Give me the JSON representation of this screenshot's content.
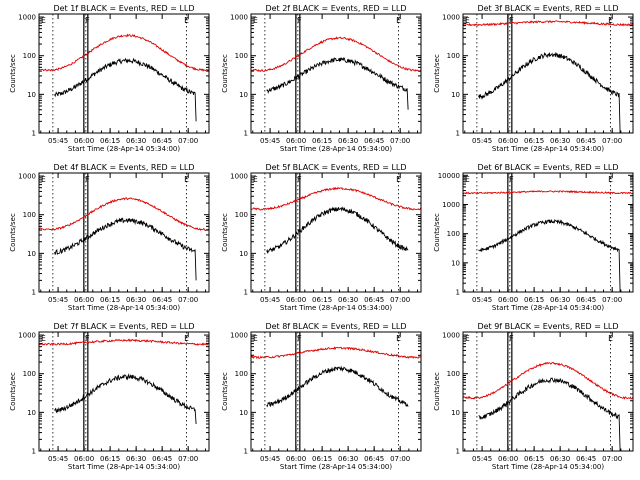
{
  "figure": {
    "xlabel": "Start Time (28-Apr-14 05:34:00)",
    "ylabel": "Counts/sec",
    "colors": {
      "events": "#000000",
      "lld": "#e00000"
    },
    "x_tick_labels": [
      "05:45",
      "06:00",
      "06:15",
      "06:30",
      "06:45",
      "07:00"
    ],
    "y_tick_labels": [
      "1",
      "10",
      "100",
      "1000"
    ],
    "flag_labels": {
      "e": "E",
      "f": "F"
    }
  },
  "chart_data": [
    {
      "type": "line",
      "title": "Det 1f BLACK = Events, RED = LLD",
      "yscale": "log",
      "ylim": [
        1,
        1200
      ],
      "x_range": [
        "05:34",
        "07:12"
      ],
      "series": [
        {
          "color": "#000000",
          "base": 40,
          "amp": 0.45,
          "start": "05:43",
          "end": "07:04",
          "tail": 2
        },
        {
          "color": "#e00000",
          "base": 180,
          "amp": 0.45,
          "start": "05:34",
          "end": "07:12"
        }
      ]
    },
    {
      "type": "line",
      "title": "Det 2f BLACK = Events, RED = LLD",
      "yscale": "log",
      "ylim": [
        1,
        1200
      ],
      "x_range": [
        "05:34",
        "07:12"
      ],
      "series": [
        {
          "color": "#000000",
          "base": 45,
          "amp": 0.4,
          "start": "05:43",
          "end": "07:04",
          "tail": 4
        },
        {
          "color": "#e00000",
          "base": 160,
          "amp": 0.42,
          "start": "05:34",
          "end": "07:12"
        }
      ]
    },
    {
      "type": "line",
      "title": "Det 3f BLACK = Events, RED = LLD",
      "yscale": "log",
      "ylim": [
        1,
        1200
      ],
      "x_range": [
        "05:34",
        "07:12"
      ],
      "series": [
        {
          "color": "#000000",
          "base": 50,
          "amp": 0.55,
          "start": "05:43",
          "end": "07:04",
          "tail": 1
        },
        {
          "color": "#e00000",
          "base": 720,
          "amp": 0.04,
          "start": "05:34",
          "end": "07:12"
        }
      ]
    },
    {
      "type": "line",
      "title": "Det 4f BLACK = Events, RED = LLD",
      "yscale": "log",
      "ylim": [
        1,
        1200
      ],
      "x_range": [
        "05:34",
        "07:12"
      ],
      "series": [
        {
          "color": "#000000",
          "base": 40,
          "amp": 0.42,
          "start": "05:43",
          "end": "07:04",
          "tail": 2
        },
        {
          "color": "#e00000",
          "base": 150,
          "amp": 0.4,
          "start": "05:34",
          "end": "07:12"
        }
      ]
    },
    {
      "type": "line",
      "title": "Det 5f BLACK = Events, RED = LLD",
      "yscale": "log",
      "ylim": [
        1,
        1200
      ],
      "x_range": [
        "05:34",
        "07:12"
      ],
      "series": [
        {
          "color": "#000000",
          "base": 65,
          "amp": 0.55,
          "start": "05:43",
          "end": "07:04",
          "tail": 12
        },
        {
          "color": "#e00000",
          "base": 330,
          "amp": 0.27,
          "start": "05:34",
          "end": "07:12"
        }
      ]
    },
    {
      "type": "line",
      "title": "Det 6f BLACK = Events, RED = LLD",
      "yscale": "log",
      "ylim": [
        1,
        12000
      ],
      "x_range": [
        "05:34",
        "07:12"
      ],
      "series": [
        {
          "color": "#000000",
          "base": 130,
          "amp": 0.5,
          "start": "05:43",
          "end": "07:04",
          "tail": 1
        },
        {
          "color": "#e00000",
          "base": 2700,
          "amp": 0.03,
          "start": "05:34",
          "end": "07:12"
        }
      ]
    },
    {
      "type": "line",
      "title": "Det 7f BLACK = Events, RED = LLD",
      "yscale": "log",
      "ylim": [
        1,
        1200
      ],
      "x_range": [
        "05:34",
        "07:12"
      ],
      "series": [
        {
          "color": "#000000",
          "base": 45,
          "amp": 0.45,
          "start": "05:43",
          "end": "07:04",
          "tail": 5
        },
        {
          "color": "#e00000",
          "base": 680,
          "amp": 0.05,
          "start": "05:34",
          "end": "07:12"
        }
      ]
    },
    {
      "type": "line",
      "title": "Det 8f BLACK = Events, RED = LLD",
      "yscale": "log",
      "ylim": [
        1,
        1200
      ],
      "x_range": [
        "05:34",
        "07:12"
      ],
      "series": [
        {
          "color": "#000000",
          "base": 70,
          "amp": 0.48,
          "start": "05:43",
          "end": "07:04",
          "tail": 14
        },
        {
          "color": "#e00000",
          "base": 390,
          "amp": 0.12,
          "start": "05:34",
          "end": "07:12"
        }
      ]
    },
    {
      "type": "line",
      "title": "Det 9f BLACK = Events, RED = LLD",
      "yscale": "log",
      "ylim": [
        1,
        1200
      ],
      "x_range": [
        "05:34",
        "07:12"
      ],
      "series": [
        {
          "color": "#000000",
          "base": 35,
          "amp": 0.5,
          "start": "05:43",
          "end": "07:04",
          "tail": 1
        },
        {
          "color": "#e00000",
          "base": 100,
          "amp": 0.45,
          "start": "05:34",
          "end": "07:12"
        }
      ]
    }
  ]
}
